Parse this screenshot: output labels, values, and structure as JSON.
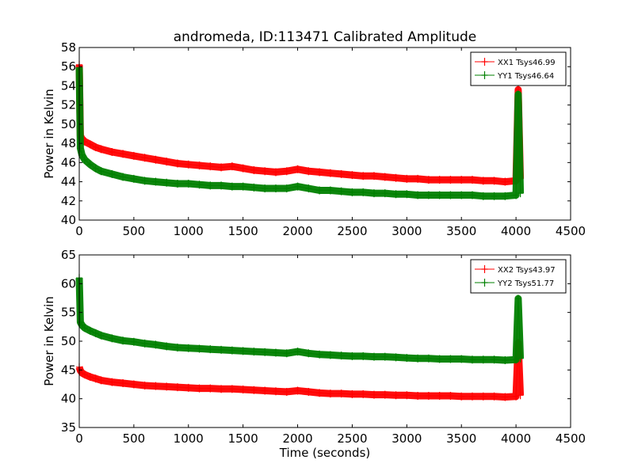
{
  "figure_title": "andromeda, ID:113471 Calibrated Amplitude",
  "chart_data": [
    {
      "type": "line",
      "title": "andromeda, ID:113471 Calibrated Amplitude",
      "xlabel": "",
      "ylabel": "Power in Kelvin",
      "xlim": [
        0,
        4500
      ],
      "ylim": [
        40,
        58
      ],
      "xticks": [
        "0",
        "500",
        "1000",
        "1500",
        "2000",
        "2500",
        "3000",
        "3500",
        "4000",
        "4500"
      ],
      "yticks": [
        "40",
        "42",
        "44",
        "46",
        "48",
        "50",
        "52",
        "54",
        "56",
        "58"
      ],
      "legend_position": "top-right",
      "grid": false,
      "series": [
        {
          "name": "XX1 Tsys46.99",
          "color": "#ff0000",
          "x": [
            0,
            10,
            25,
            50,
            100,
            150,
            200,
            300,
            400,
            500,
            600,
            700,
            800,
            900,
            1000,
            1100,
            1200,
            1300,
            1400,
            1500,
            1600,
            1700,
            1800,
            1900,
            2000,
            2100,
            2200,
            2300,
            2400,
            2500,
            2600,
            2700,
            2800,
            2900,
            3000,
            3100,
            3200,
            3300,
            3400,
            3500,
            3600,
            3700,
            3800,
            3900,
            4000,
            4020,
            4040
          ],
          "y": [
            56.2,
            48.8,
            48.5,
            48.2,
            47.9,
            47.6,
            47.4,
            47.1,
            46.9,
            46.7,
            46.5,
            46.3,
            46.1,
            45.9,
            45.8,
            45.7,
            45.6,
            45.5,
            45.6,
            45.4,
            45.2,
            45.1,
            45.0,
            45.1,
            45.3,
            45.1,
            45.0,
            44.9,
            44.8,
            44.7,
            44.6,
            44.6,
            44.5,
            44.4,
            44.3,
            44.3,
            44.2,
            44.2,
            44.2,
            44.2,
            44.2,
            44.1,
            44.1,
            44.0,
            44.1,
            53.6,
            44.3
          ]
        },
        {
          "name": "YY1 Tsys46.64",
          "color": "#008000",
          "x": [
            0,
            10,
            25,
            50,
            100,
            150,
            200,
            300,
            400,
            500,
            600,
            700,
            800,
            900,
            1000,
            1100,
            1200,
            1300,
            1400,
            1500,
            1600,
            1700,
            1800,
            1900,
            2000,
            2100,
            2200,
            2300,
            2400,
            2500,
            2600,
            2700,
            2800,
            2900,
            3000,
            3100,
            3200,
            3300,
            3400,
            3500,
            3600,
            3700,
            3800,
            3900,
            4000,
            4020,
            4040
          ],
          "y": [
            55.9,
            47.5,
            46.8,
            46.3,
            45.8,
            45.4,
            45.1,
            44.8,
            44.5,
            44.3,
            44.1,
            44.0,
            43.9,
            43.8,
            43.8,
            43.7,
            43.6,
            43.6,
            43.5,
            43.5,
            43.4,
            43.3,
            43.3,
            43.3,
            43.5,
            43.3,
            43.1,
            43.1,
            43.0,
            42.9,
            42.9,
            42.8,
            42.8,
            42.7,
            42.7,
            42.6,
            42.6,
            42.6,
            42.6,
            42.6,
            42.6,
            42.5,
            42.5,
            42.5,
            42.6,
            53.1,
            42.8
          ]
        }
      ]
    },
    {
      "type": "line",
      "title": "",
      "xlabel": "Time (seconds)",
      "ylabel": "Power in Kelvin",
      "xlim": [
        0,
        4500
      ],
      "ylim": [
        35,
        65
      ],
      "xticks": [
        "0",
        "500",
        "1000",
        "1500",
        "2000",
        "2500",
        "3000",
        "3500",
        "4000",
        "4500"
      ],
      "yticks": [
        "35",
        "40",
        "45",
        "50",
        "55",
        "60",
        "65"
      ],
      "legend_position": "top-right",
      "grid": false,
      "series": [
        {
          "name": "XX2 Tsys43.97",
          "color": "#ff0000",
          "x": [
            0,
            10,
            25,
            50,
            100,
            150,
            200,
            300,
            400,
            500,
            600,
            700,
            800,
            900,
            1000,
            1100,
            1200,
            1300,
            1400,
            1500,
            1600,
            1700,
            1800,
            1900,
            2000,
            2100,
            2200,
            2300,
            2400,
            2500,
            2600,
            2700,
            2800,
            2900,
            3000,
            3100,
            3200,
            3300,
            3400,
            3500,
            3600,
            3700,
            3800,
            3900,
            4000,
            4020,
            4040
          ],
          "y": [
            45.5,
            44.9,
            44.5,
            44.2,
            43.8,
            43.5,
            43.2,
            42.9,
            42.7,
            42.5,
            42.3,
            42.2,
            42.1,
            42.0,
            41.9,
            41.8,
            41.8,
            41.7,
            41.7,
            41.6,
            41.5,
            41.4,
            41.3,
            41.2,
            41.4,
            41.2,
            41.0,
            40.9,
            40.9,
            40.8,
            40.8,
            40.7,
            40.7,
            40.6,
            40.6,
            40.5,
            40.5,
            40.5,
            40.5,
            40.4,
            40.4,
            40.4,
            40.4,
            40.3,
            40.4,
            49.7,
            40.6
          ]
        },
        {
          "name": "YY2 Tsys51.77",
          "color": "#008000",
          "x": [
            0,
            10,
            25,
            50,
            100,
            150,
            200,
            300,
            400,
            500,
            600,
            700,
            800,
            900,
            1000,
            1100,
            1200,
            1300,
            1400,
            1500,
            1600,
            1700,
            1800,
            1900,
            2000,
            2100,
            2200,
            2300,
            2400,
            2500,
            2600,
            2700,
            2800,
            2900,
            3000,
            3100,
            3200,
            3300,
            3400,
            3500,
            3600,
            3700,
            3800,
            3900,
            4000,
            4020,
            4040
          ],
          "y": [
            61.0,
            53.3,
            52.8,
            52.3,
            51.8,
            51.4,
            51.0,
            50.5,
            50.1,
            49.9,
            49.6,
            49.4,
            49.1,
            48.9,
            48.8,
            48.7,
            48.6,
            48.5,
            48.4,
            48.3,
            48.2,
            48.1,
            48.0,
            47.9,
            48.2,
            47.9,
            47.7,
            47.6,
            47.5,
            47.4,
            47.4,
            47.3,
            47.3,
            47.2,
            47.1,
            47.0,
            47.0,
            46.9,
            46.9,
            46.9,
            46.8,
            46.8,
            46.8,
            46.7,
            46.8,
            57.4,
            47.0
          ]
        }
      ]
    }
  ]
}
